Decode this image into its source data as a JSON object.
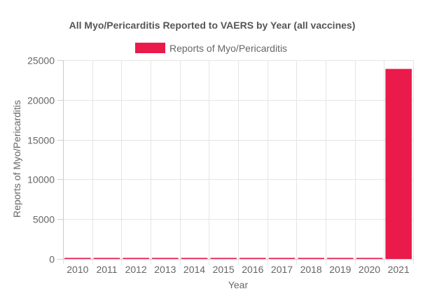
{
  "chart_data": {
    "type": "bar",
    "title": "All Myo/Pericarditis Reported to VAERS by Year (all vaccines)",
    "xlabel": "Year",
    "ylabel": "Reports of Myo/Pericarditis",
    "categories": [
      "2010",
      "2011",
      "2012",
      "2013",
      "2014",
      "2015",
      "2016",
      "2017",
      "2018",
      "2019",
      "2020",
      "2021"
    ],
    "series": [
      {
        "name": "Reports of Myo/Pericarditis",
        "color": "#ea1a4b",
        "values": [
          40,
          35,
          110,
          100,
          60,
          45,
          40,
          55,
          125,
          55,
          60,
          23900
        ]
      }
    ],
    "ylim": [
      0,
      25000
    ],
    "yticks": [
      0,
      5000,
      10000,
      15000,
      20000,
      25000
    ],
    "grid": true,
    "legend": "top-center"
  }
}
